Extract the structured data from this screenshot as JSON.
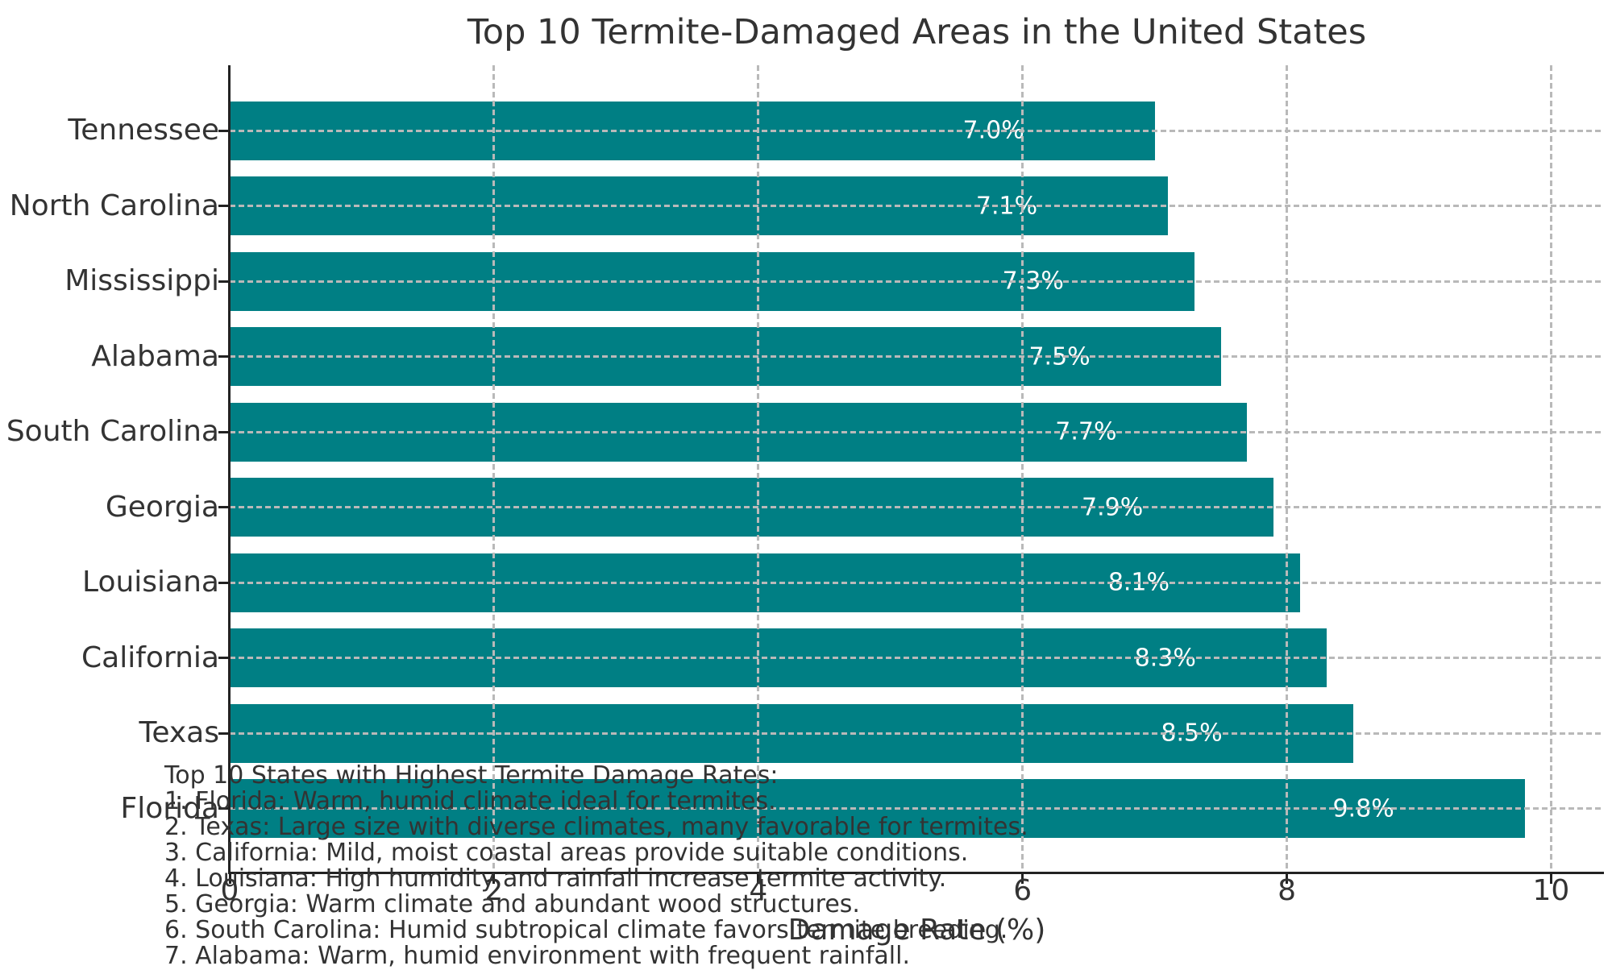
{
  "chart_data": {
    "type": "bar",
    "orientation": "horizontal",
    "title": "Top 10 Termite-Damaged Areas in the United States",
    "xlabel": "Damage Rate (%)",
    "ylabel": "",
    "category_order": "top-to-bottom",
    "categories": [
      "Tennessee",
      "North Carolina",
      "Mississippi",
      "Alabama",
      "South Carolina",
      "Georgia",
      "Louisiana",
      "California",
      "Texas",
      "Florida"
    ],
    "values": [
      7.0,
      7.1,
      7.3,
      7.5,
      7.7,
      7.9,
      8.1,
      8.3,
      8.5,
      9.8
    ],
    "bar_labels": [
      "7.0%",
      "7.1%",
      "7.3%",
      "7.5%",
      "7.7%",
      "7.9%",
      "8.1%",
      "8.3%",
      "8.5%",
      "9.8%"
    ],
    "xticks": [
      0,
      2,
      4,
      6,
      8,
      10
    ],
    "xtick_labels": [
      "0",
      "2",
      "4",
      "6",
      "8",
      "10"
    ],
    "xlim": [
      0,
      10.4
    ],
    "grid": "dashed",
    "legend": "none",
    "bar_color": "#007f84",
    "bar_label_color": "#ffffff"
  },
  "annotation": {
    "lines": [
      "Top 10 States with Highest Termite Damage Rates:",
      "1. Florida: Warm, humid climate ideal for termites.",
      "2. Texas: Large size with diverse climates, many favorable for termites.",
      "3. California: Mild, moist coastal areas provide suitable conditions.",
      "4. Louisiana: High humidity and rainfall increase termite activity.",
      "5. Georgia: Warm climate and abundant wood structures.",
      "6. South Carolina: Humid subtropical climate favors termite breeding.",
      "7. Alabama: Warm, humid environment with frequent rainfall."
    ]
  }
}
